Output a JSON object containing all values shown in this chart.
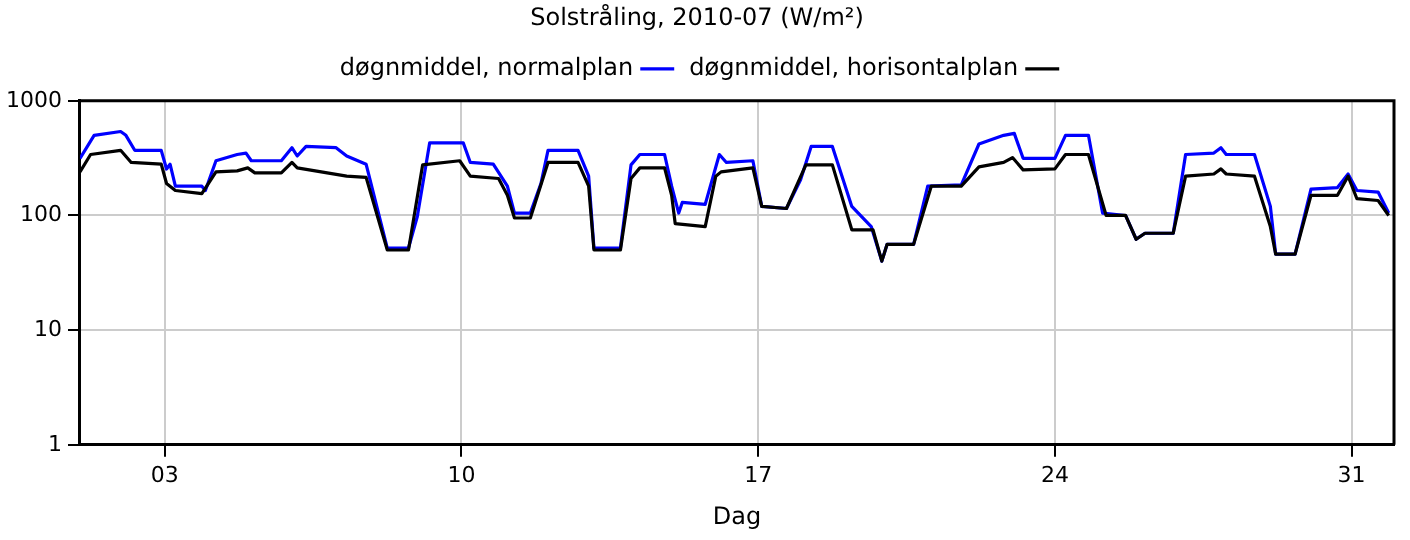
{
  "chart_data": {
    "type": "line",
    "title": "Solstråling, 2010-07 (W/m²)",
    "xlabel": "Dag",
    "log": "y",
    "grid": true,
    "legend": "top",
    "marker": "none",
    "line_style": "solid",
    "xlim": [
      "2010-07-01",
      "2010-08-01"
    ],
    "xticks": [
      {
        "value": "2010-07-03",
        "label": "03"
      },
      {
        "value": "2010-07-10",
        "label": "10"
      },
      {
        "value": "2010-07-17",
        "label": "17"
      },
      {
        "value": "2010-07-24",
        "label": "24"
      },
      {
        "value": "2010-07-31",
        "label": "31"
      }
    ],
    "ylim": [
      1,
      1000
    ],
    "yticks": [
      1,
      10,
      100,
      1000
    ],
    "series": [
      {
        "name": "døgnmiddel, horisontalplan",
        "color": "#000000",
        "x": [
          "2010-07-01T00:00",
          "2010-07-01T06:00",
          "2010-07-01T23:00",
          "2010-07-02T05:00",
          "2010-07-02T22:00",
          "2010-07-03T01:00",
          "2010-07-03T06:00",
          "2010-07-03T21:00",
          "2010-07-04T05:00",
          "2010-07-04T17:00",
          "2010-07-04T23:00",
          "2010-07-05T03:00",
          "2010-07-05T18:00",
          "2010-07-06T00:00",
          "2010-07-06T03:00",
          "2010-07-07T07:00",
          "2010-07-07T18:00",
          "2010-07-08T06:00",
          "2010-07-08T18:00",
          "2010-07-09T02:00",
          "2010-07-09T23:00",
          "2010-07-10T05:00",
          "2010-07-10T21:00",
          "2010-07-11T02:00",
          "2010-07-11T06:00",
          "2010-07-11T15:00",
          "2010-07-12T01:00",
          "2010-07-12T18:00",
          "2010-07-13T00:00",
          "2010-07-13T03:00",
          "2010-07-13T18:00",
          "2010-07-14T00:00",
          "2010-07-14T05:00",
          "2010-07-14T19:00",
          "2010-07-14T23:00",
          "2010-07-15T01:00",
          "2010-07-15T18:00",
          "2010-07-16T00:00",
          "2010-07-16T03:00",
          "2010-07-16T21:00",
          "2010-07-17T02:00",
          "2010-07-17T16:00",
          "2010-07-18T03:00",
          "2010-07-18T18:00",
          "2010-07-19T05:00",
          "2010-07-19T17:00",
          "2010-07-19T22:00",
          "2010-07-20T01:00",
          "2010-07-20T16:00",
          "2010-07-21T02:00",
          "2010-07-21T19:00",
          "2010-07-22T05:00",
          "2010-07-22T19:00",
          "2010-07-23T00:00",
          "2010-07-23T06:00",
          "2010-07-24T00:00",
          "2010-07-24T06:00",
          "2010-07-24T19:00",
          "2010-07-25T05:00",
          "2010-07-25T16:00",
          "2010-07-25T22:00",
          "2010-07-26T03:00",
          "2010-07-26T19:00",
          "2010-07-27T02:00",
          "2010-07-27T18:00",
          "2010-07-27T22:00",
          "2010-07-28T01:00",
          "2010-07-28T17:00",
          "2010-07-29T02:00",
          "2010-07-29T05:00",
          "2010-07-29T16:00",
          "2010-07-30T01:00",
          "2010-07-30T16:00",
          "2010-07-30T22:00",
          "2010-07-31T03:00",
          "2010-07-31T15:00",
          "2010-07-31T21:00"
        ],
        "values": [
          240,
          340,
          370,
          290,
          280,
          190,
          165,
          155,
          240,
          245,
          260,
          235,
          235,
          290,
          260,
          220,
          215,
          50,
          50,
          276,
          300,
          220,
          210,
          150,
          95,
          95,
          290,
          290,
          180,
          50,
          50,
          210,
          260,
          260,
          150,
          85,
          80,
          220,
          240,
          260,
          120,
          115,
          276,
          276,
          75,
          75,
          40,
          56,
          56,
          180,
          180,
          265,
          290,
          320,
          250,
          255,
          340,
          340,
          100,
          100,
          62,
          70,
          70,
          220,
          230,
          255,
          230,
          220,
          80,
          46,
          46,
          150,
          150,
          220,
          140,
          135,
          100
        ]
      },
      {
        "name": "døgnmiddel, normalplan",
        "color": "#0000ff",
        "x": [
          "2010-07-01T00:00",
          "2010-07-01T08:00",
          "2010-07-01T23:00",
          "2010-07-02T02:00",
          "2010-07-02T07:00",
          "2010-07-02T22:00",
          "2010-07-03T01:00",
          "2010-07-03T03:00",
          "2010-07-03T06:00",
          "2010-07-03T21:00",
          "2010-07-03T23:00",
          "2010-07-04T05:00",
          "2010-07-04T17:00",
          "2010-07-04T22:00",
          "2010-07-05T01:00",
          "2010-07-05T18:00",
          "2010-07-06T00:00",
          "2010-07-06T03:00",
          "2010-07-06T08:00",
          "2010-07-07T01:00",
          "2010-07-07T07:00",
          "2010-07-07T18:00",
          "2010-07-08T06:00",
          "2010-07-08T18:00",
          "2010-07-08T23:00",
          "2010-07-09T06:00",
          "2010-07-10T01:00",
          "2010-07-10T05:00",
          "2010-07-10T18:00",
          "2010-07-11T02:00",
          "2010-07-11T06:00",
          "2010-07-11T15:00",
          "2010-07-11T21:00",
          "2010-07-12T01:00",
          "2010-07-12T18:00",
          "2010-07-13T00:00",
          "2010-07-13T03:00",
          "2010-07-13T18:00",
          "2010-07-14T00:00",
          "2010-07-14T05:00",
          "2010-07-14T19:00",
          "2010-07-14T23:00",
          "2010-07-15T03:00",
          "2010-07-15T05:00",
          "2010-07-15T18:00",
          "2010-07-16T02:00",
          "2010-07-16T06:00",
          "2010-07-16T21:00",
          "2010-07-17T02:00",
          "2010-07-17T16:00",
          "2010-07-18T00:00",
          "2010-07-18T06:00",
          "2010-07-18T18:00",
          "2010-07-19T05:00",
          "2010-07-19T16:00",
          "2010-07-19T22:00",
          "2010-07-20T01:00",
          "2010-07-20T16:00",
          "2010-07-21T00:00",
          "2010-07-21T19:00",
          "2010-07-22T05:00",
          "2010-07-22T19:00",
          "2010-07-23T01:00",
          "2010-07-23T06:00",
          "2010-07-24T00:00",
          "2010-07-24T06:00",
          "2010-07-24T19:00",
          "2010-07-25T03:00",
          "2010-07-25T16:00",
          "2010-07-25T22:00",
          "2010-07-26T03:00",
          "2010-07-26T19:00",
          "2010-07-27T02:00",
          "2010-07-27T18:00",
          "2010-07-27T22:00",
          "2010-07-28T01:00",
          "2010-07-28T17:00",
          "2010-07-29T02:00",
          "2010-07-29T05:00",
          "2010-07-29T16:00",
          "2010-07-30T01:00",
          "2010-07-30T16:00",
          "2010-07-30T22:00",
          "2010-07-31T03:00",
          "2010-07-31T15:00",
          "2010-07-31T21:00"
        ],
        "values": [
          314,
          500,
          540,
          500,
          370,
          370,
          254,
          280,
          180,
          180,
          165,
          300,
          340,
          350,
          300,
          300,
          390,
          330,
          400,
          390,
          330,
          280,
          52,
          52,
          98,
          430,
          430,
          290,
          280,
          180,
          105,
          105,
          190,
          370,
          370,
          220,
          52,
          52,
          276,
          340,
          340,
          180,
          105,
          130,
          125,
          340,
          290,
          300,
          120,
          115,
          205,
          400,
          400,
          120,
          80,
          40,
          56,
          56,
          180,
          185,
          420,
          500,
          520,
          315,
          315,
          500,
          500,
          105,
          100,
          62,
          70,
          70,
          340,
          350,
          390,
          340,
          340,
          120,
          46,
          46,
          170,
          175,
          230,
          165,
          160,
          105
        ]
      }
    ]
  }
}
